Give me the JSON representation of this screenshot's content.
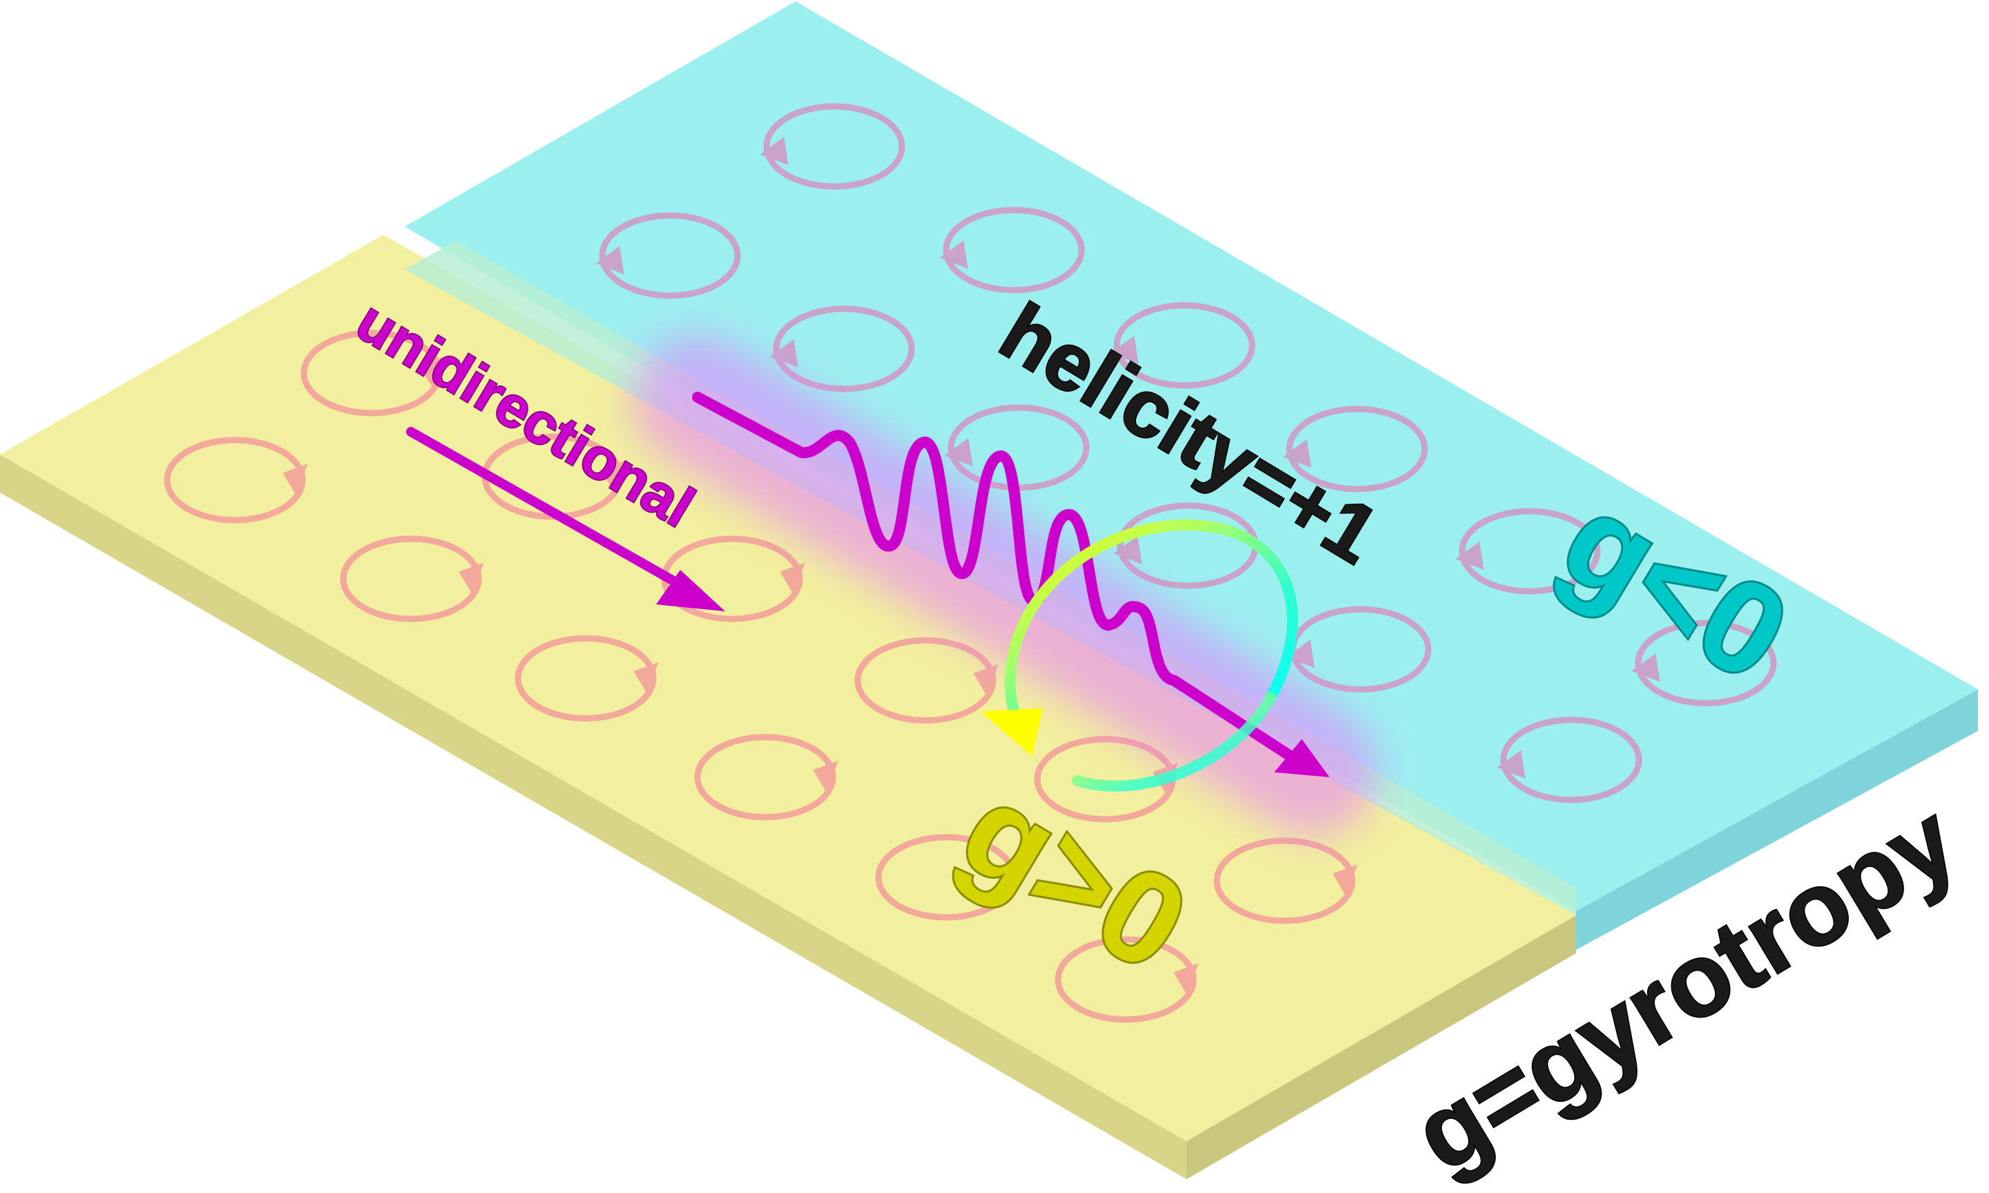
{
  "labels": {
    "unidirectional": "unidirectional",
    "helicity": "helicity=+1",
    "g_left": "g>0",
    "g_right": "g<0",
    "definition": "g=gyrotropy"
  },
  "colors": {
    "yellow_slab": "#f2ef9e",
    "yellow_edge": "#d8d488",
    "cyan_slab": "#9cefef",
    "cyan_edge": "#7fd3da",
    "overlap": "#b8eed2",
    "circle_on_yellow": "#f2a89a",
    "circle_on_cyan": "#c9a4c8",
    "wave": "#cc00cc",
    "wave_glow": "#e580ff",
    "g_yellow": "#d4d400",
    "g_cyan": "#00c8c8",
    "text_dark": "#1a1a1a"
  },
  "icons": {
    "yellow_circles": "counterclockwise-circulation-icon",
    "cyan_circles": "clockwise-circulation-icon",
    "wave": "wave-packet-icon",
    "helicity_arrow": "rainbow-rotation-arrow-icon"
  }
}
